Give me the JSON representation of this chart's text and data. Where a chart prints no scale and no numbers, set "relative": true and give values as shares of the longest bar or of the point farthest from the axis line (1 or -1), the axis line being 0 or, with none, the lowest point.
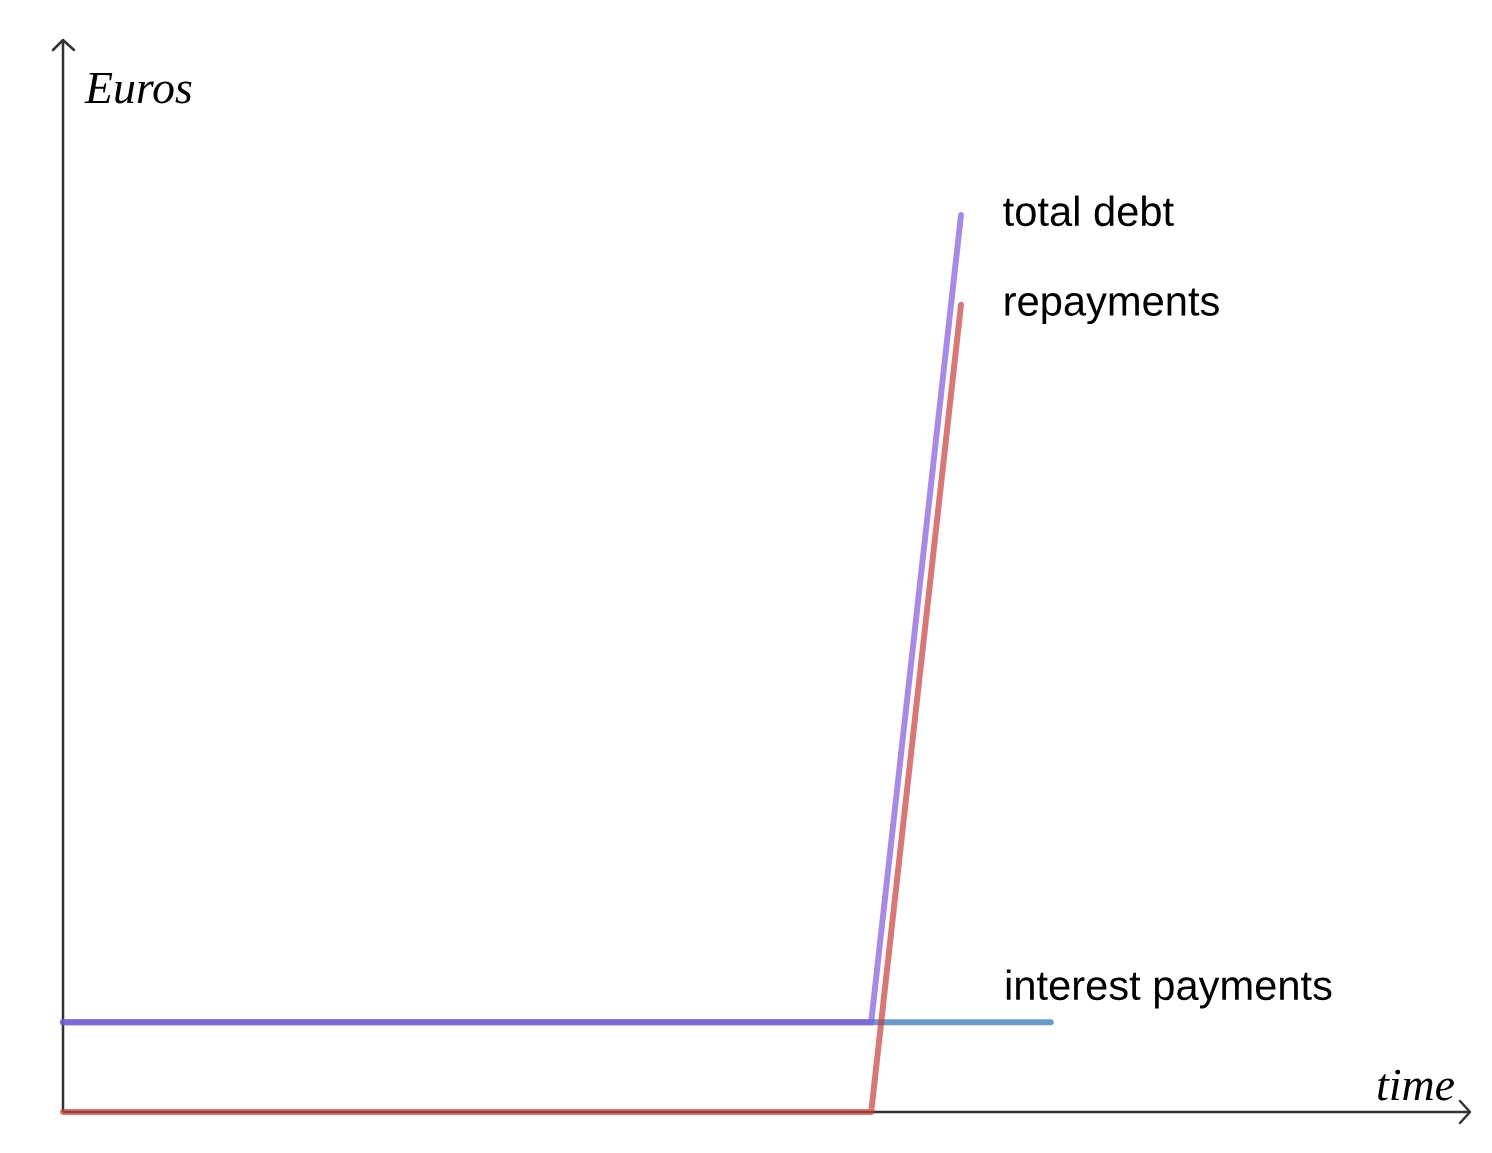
{
  "chart_data": {
    "type": "line",
    "relative": true,
    "ylabel": "Euros",
    "annotations": [
      "time"
    ],
    "categories": [
      null,
      null,
      null,
      null,
      null,
      null,
      null,
      null,
      null,
      null,
      null,
      null
    ],
    "series": [
      {
        "name": "total debt",
        "color": "#a78be6",
        "values": [
          0.1,
          0.1,
          0.1,
          0.1,
          0.1,
          0.1,
          0.1,
          0.1,
          0.1,
          0.1,
          1,
          null
        ]
      },
      {
        "name": "repayments",
        "color": "#d97777",
        "values": [
          0,
          0,
          0,
          0,
          0,
          0,
          0,
          0,
          0,
          0,
          0.9,
          null
        ]
      },
      {
        "name": "interest payments",
        "color": "#6a9bc9",
        "values": [
          0.1,
          0.1,
          0.1,
          0.1,
          0.1,
          0.1,
          0.1,
          0.1,
          0.1,
          0.1,
          0.1,
          0.1
        ]
      }
    ]
  }
}
